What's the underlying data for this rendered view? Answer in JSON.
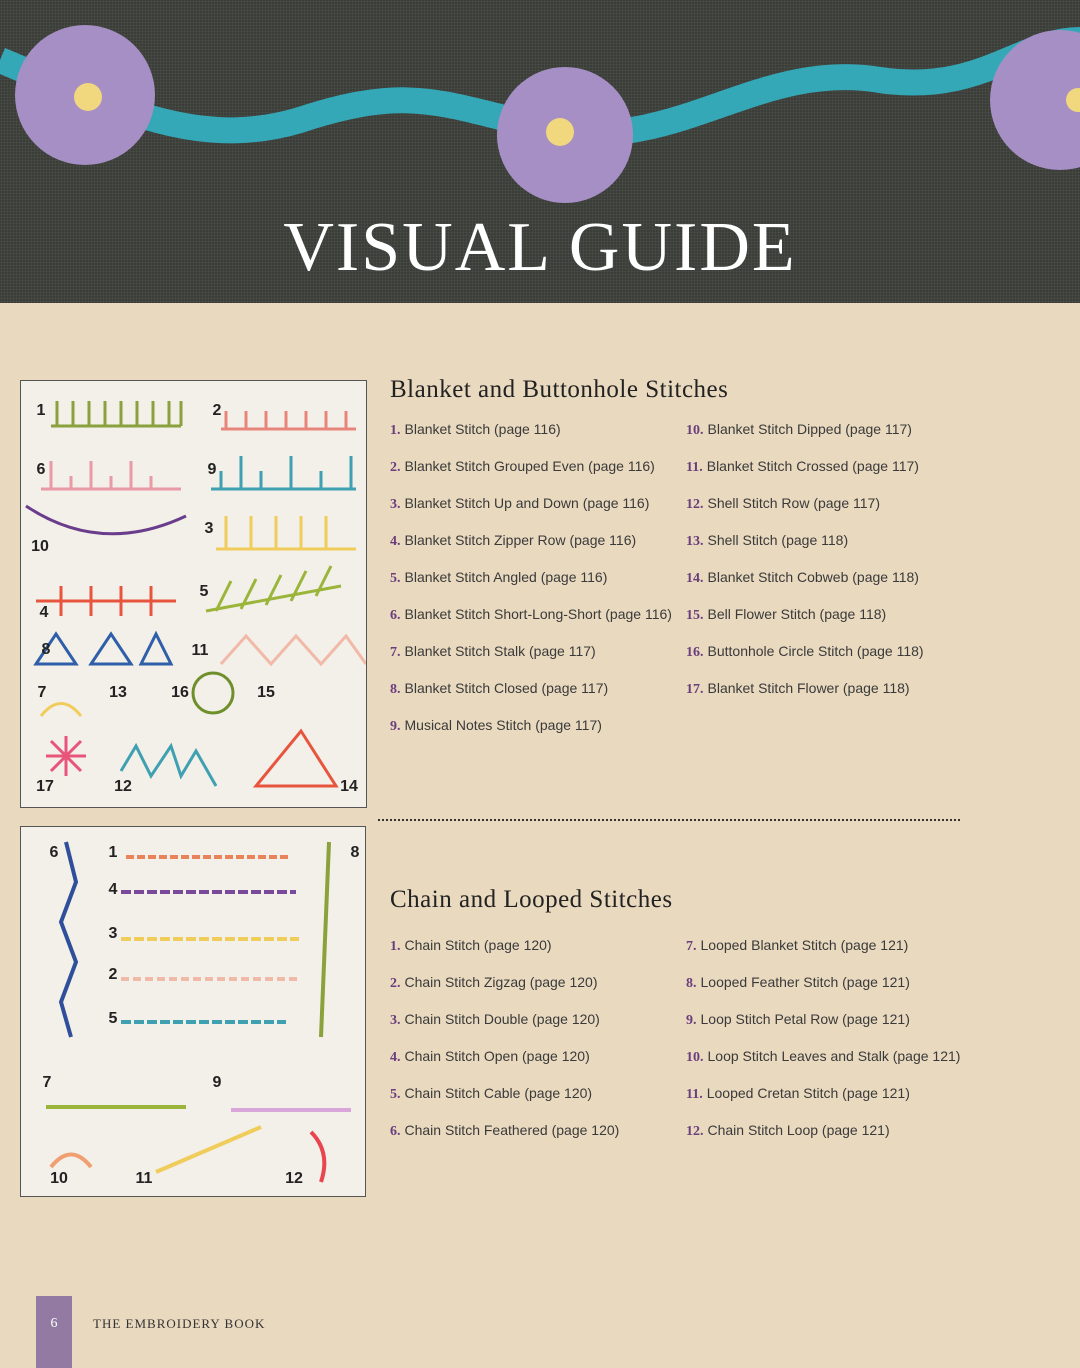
{
  "header": {
    "title": "VISUAL GUIDE"
  },
  "sections": [
    {
      "title": "Blanket and Buttonhole Stitches",
      "columns": [
        [
          {
            "num": "1.",
            "text": "Blanket Stitch (page 116)"
          },
          {
            "num": "2.",
            "text": "Blanket Stitch Grouped Even (page 116)"
          },
          {
            "num": "3.",
            "text": "Blanket Stitch Up and Down (page 116)"
          },
          {
            "num": "4.",
            "text": "Blanket Stitch Zipper Row (page 116)"
          },
          {
            "num": "5.",
            "text": "Blanket Stitch Angled (page 116)"
          },
          {
            "num": "6.",
            "text": "Blanket Stitch Short-Long-Short (page 116)"
          },
          {
            "num": "7.",
            "text": "Blanket Stitch Stalk (page 117)"
          },
          {
            "num": "8.",
            "text": "Blanket Stitch Closed (page 117)"
          },
          {
            "num": "9.",
            "text": "Musical Notes Stitch (page 117)"
          }
        ],
        [
          {
            "num": "10.",
            "text": "Blanket Stitch Dipped (page 117)"
          },
          {
            "num": "11.",
            "text": "Blanket Stitch Crossed (page 117)"
          },
          {
            "num": "12.",
            "text": "Shell Stitch Row (page 117)"
          },
          {
            "num": "13.",
            "text": "Shell Stitch (page 118)"
          },
          {
            "num": "14.",
            "text": "Blanket Stitch Cobweb (page 118)"
          },
          {
            "num": "15.",
            "text": "Bell Flower Stitch (page 118)"
          },
          {
            "num": "16.",
            "text": "Buttonhole Circle Stitch (page 118)"
          },
          {
            "num": "17.",
            "text": "Blanket Stitch Flower (page 118)"
          }
        ]
      ],
      "photo_labels": [
        "1",
        "2",
        "6",
        "9",
        "10",
        "3",
        "4",
        "5",
        "8",
        "11",
        "7",
        "13",
        "16",
        "15",
        "17",
        "12",
        "14"
      ]
    },
    {
      "title": "Chain and Looped Stitches",
      "columns": [
        [
          {
            "num": "1.",
            "text": "Chain Stitch (page 120)"
          },
          {
            "num": "2.",
            "text": "Chain Stitch Zigzag (page 120)"
          },
          {
            "num": "3.",
            "text": "Chain Stitch Double (page 120)"
          },
          {
            "num": "4.",
            "text": "Chain Stitch Open (page 120)"
          },
          {
            "num": "5.",
            "text": "Chain Stitch Cable (page 120)"
          },
          {
            "num": "6.",
            "text": "Chain Stitch Feathered (page 120)"
          }
        ],
        [
          {
            "num": "7.",
            "text": "Looped Blanket Stitch (page 121)"
          },
          {
            "num": "8.",
            "text": "Looped Feather Stitch (page 121)"
          },
          {
            "num": "9.",
            "text": "Loop Stitch Petal Row (page 121)"
          },
          {
            "num": "10.",
            "text": "Loop Stitch Leaves and Stalk (page 121)"
          },
          {
            "num": "11.",
            "text": "Looped Cretan Stitch (page 121)"
          },
          {
            "num": "12.",
            "text": "Chain Stitch Loop (page 121)"
          }
        ]
      ],
      "photo_labels": [
        "6",
        "1",
        "8",
        "4",
        "3",
        "2",
        "5",
        "7",
        "9",
        "10",
        "11",
        "12"
      ]
    }
  ],
  "footer": {
    "page_number": "6",
    "book_title": "THE EMBROIDERY BOOK"
  },
  "colors": {
    "background": "#e9d9bf",
    "header": "#3a3d38",
    "accent": "#927aa2",
    "number": "#6a3d7c",
    "ribbon": "#35a8b8",
    "flower": "#a58fc4"
  }
}
